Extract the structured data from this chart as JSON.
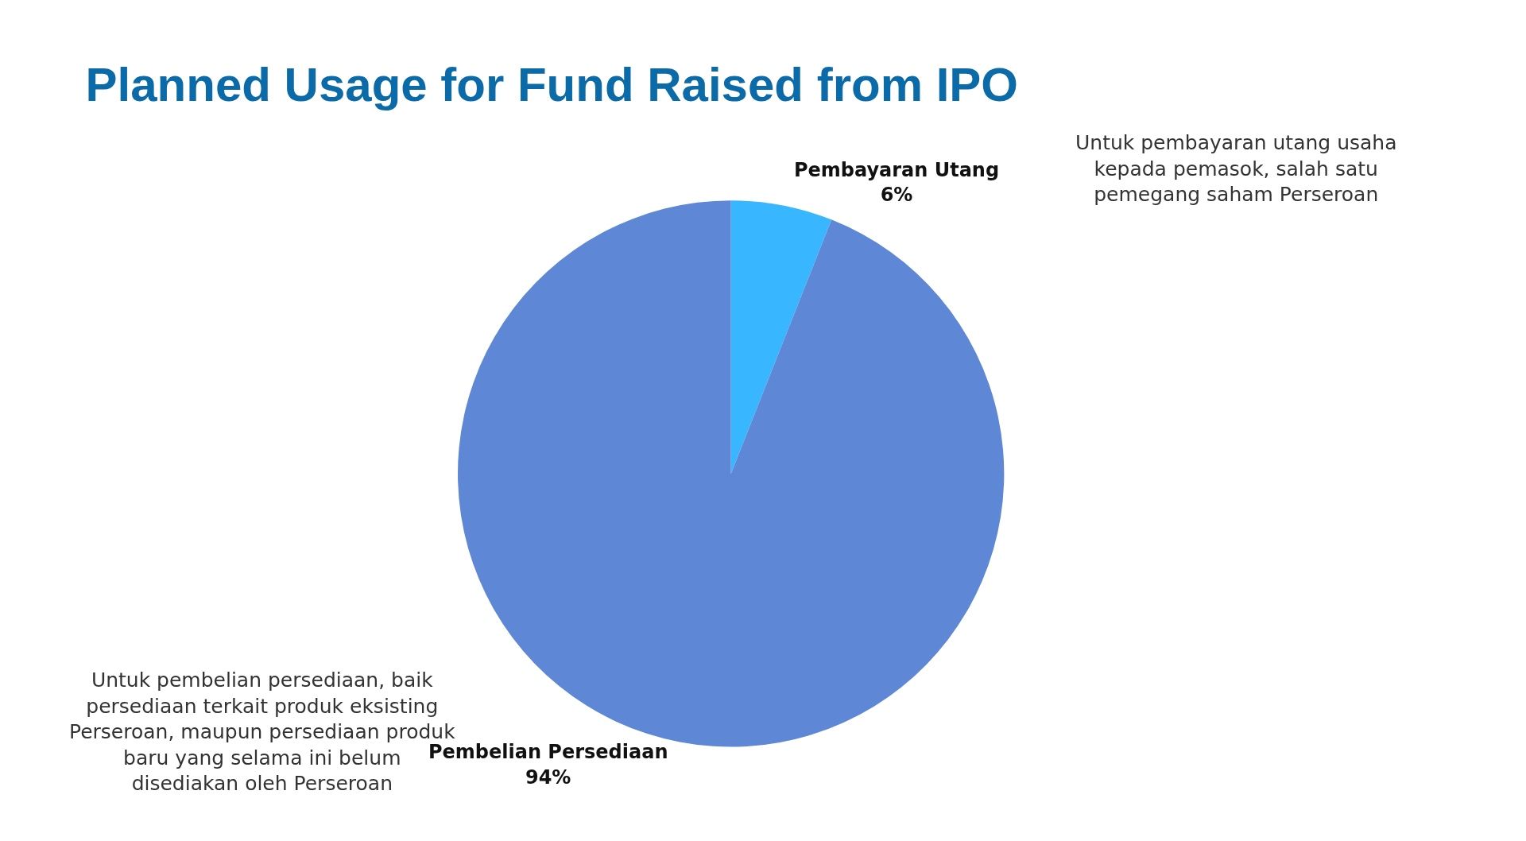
{
  "chart_data": {
    "type": "pie",
    "title": "Planned Usage for Fund Raised from IPO",
    "categories": [
      "Pembayaran Utang",
      "Pembelian Persediaan"
    ],
    "values": [
      6,
      94
    ],
    "value_labels": [
      "6%",
      "94%"
    ],
    "colors": [
      "#38b6ff",
      "#5e88d6"
    ],
    "legend": false,
    "annotations": [
      "Untuk pembayaran utang usaha kepada pemasok, salah satu pemegang saham Perseroan",
      "Untuk pembelian persediaan, baik persediaan terkait produk eksisting Perseroan, maupun persediaan produk baru yang selama ini belum disediakan oleh Perseroan"
    ]
  }
}
